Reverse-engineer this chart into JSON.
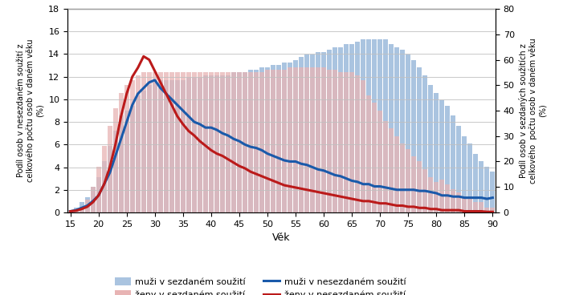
{
  "ages": [
    15,
    16,
    17,
    18,
    19,
    20,
    21,
    22,
    23,
    24,
    25,
    26,
    27,
    28,
    29,
    30,
    31,
    32,
    33,
    34,
    35,
    36,
    37,
    38,
    39,
    40,
    41,
    42,
    43,
    44,
    45,
    46,
    47,
    48,
    49,
    50,
    51,
    52,
    53,
    54,
    55,
    56,
    57,
    58,
    59,
    60,
    61,
    62,
    63,
    64,
    65,
    66,
    67,
    68,
    69,
    70,
    71,
    72,
    73,
    74,
    75,
    76,
    77,
    78,
    79,
    80,
    81,
    82,
    83,
    84,
    85,
    86,
    87,
    88,
    89,
    90
  ],
  "muzi_sezdani": [
    1,
    2,
    4,
    6,
    10,
    14,
    20,
    26,
    32,
    38,
    40,
    42,
    46,
    48,
    50,
    51,
    52,
    52,
    52,
    52,
    52,
    53,
    53,
    53,
    54,
    54,
    54,
    54,
    54,
    55,
    55,
    55,
    56,
    56,
    57,
    57,
    58,
    58,
    59,
    59,
    60,
    61,
    62,
    62,
    63,
    63,
    64,
    65,
    65,
    66,
    66,
    67,
    68,
    68,
    68,
    68,
    68,
    66,
    65,
    64,
    62,
    60,
    57,
    54,
    50,
    47,
    44,
    42,
    38,
    34,
    30,
    27,
    23,
    20,
    18,
    16
  ],
  "zeny_sezdani": [
    0.5,
    1,
    2,
    5,
    10,
    18,
    26,
    34,
    41,
    47,
    50,
    52,
    54,
    55,
    55,
    55,
    55,
    55,
    55,
    55,
    55,
    55,
    55,
    55,
    55,
    55,
    55,
    55,
    55,
    55,
    55,
    55,
    55,
    55,
    55,
    56,
    56,
    56,
    56,
    57,
    57,
    57,
    57,
    57,
    57,
    57,
    56,
    56,
    55,
    55,
    55,
    54,
    52,
    46,
    43,
    40,
    36,
    33,
    30,
    27,
    25,
    22,
    20,
    17,
    14,
    12,
    13,
    11,
    9,
    8,
    6,
    6,
    4,
    4,
    2,
    2
  ],
  "muzi_nesezdani": [
    0.1,
    0.2,
    0.4,
    0.6,
    1.0,
    1.5,
    2.5,
    3.5,
    5.0,
    6.5,
    8.0,
    9.5,
    10.5,
    11.0,
    11.5,
    11.7,
    11.0,
    10.5,
    10.0,
    9.5,
    9.0,
    8.5,
    8.0,
    7.8,
    7.5,
    7.5,
    7.3,
    7.0,
    6.8,
    6.5,
    6.3,
    6.0,
    5.8,
    5.7,
    5.5,
    5.2,
    5.0,
    4.8,
    4.6,
    4.5,
    4.5,
    4.3,
    4.2,
    4.0,
    3.8,
    3.7,
    3.5,
    3.3,
    3.2,
    3.0,
    2.8,
    2.7,
    2.5,
    2.5,
    2.3,
    2.3,
    2.2,
    2.1,
    2.0,
    2.0,
    2.0,
    2.0,
    1.9,
    1.9,
    1.8,
    1.7,
    1.5,
    1.5,
    1.4,
    1.4,
    1.3,
    1.3,
    1.3,
    1.3,
    1.2,
    1.3
  ],
  "zeny_nesezdani": [
    0.1,
    0.15,
    0.3,
    0.5,
    0.9,
    1.5,
    2.5,
    4.0,
    6.0,
    8.5,
    10.5,
    12.0,
    12.8,
    13.8,
    13.5,
    12.5,
    11.5,
    10.5,
    9.5,
    8.5,
    7.8,
    7.2,
    6.8,
    6.3,
    5.9,
    5.5,
    5.2,
    5.0,
    4.7,
    4.4,
    4.1,
    3.9,
    3.6,
    3.4,
    3.2,
    3.0,
    2.8,
    2.6,
    2.4,
    2.3,
    2.2,
    2.1,
    2.0,
    1.9,
    1.8,
    1.7,
    1.6,
    1.5,
    1.4,
    1.3,
    1.2,
    1.1,
    1.0,
    1.0,
    0.9,
    0.8,
    0.8,
    0.7,
    0.6,
    0.6,
    0.5,
    0.5,
    0.4,
    0.4,
    0.3,
    0.3,
    0.2,
    0.2,
    0.2,
    0.2,
    0.1,
    0.1,
    0.1,
    0.1,
    0.05,
    0.05
  ],
  "ylabel_left": "Podíl osob v nesezdaném soužití z\ncelkového počtu osob v daném věku\n(%)",
  "ylabel_right": "Podíl osob v sezdaných soužitích z\ncelkového  počtu osob v daném věku\n(%)",
  "xlabel": "Věk",
  "ylim_left": [
    0,
    18
  ],
  "ylim_right": [
    0,
    80
  ],
  "yticks_left": [
    0,
    2,
    4,
    6,
    8,
    10,
    12,
    14,
    16,
    18
  ],
  "yticks_right": [
    0,
    10,
    20,
    30,
    40,
    50,
    60,
    70,
    80
  ],
  "xticks": [
    15,
    20,
    25,
    30,
    35,
    40,
    45,
    50,
    55,
    60,
    65,
    70,
    75,
    80,
    85,
    90
  ],
  "color_muzi_sezdani": "#aac4e0",
  "color_zeny_sezdani": "#e8b4b4",
  "color_muzi_nesezdani": "#1a5aaa",
  "color_zeny_nesezdani": "#bb1a1a",
  "legend_labels": [
    "muži v sezdaném soužití",
    "ženy v sezdaném soužití",
    "muži v nesezdaném soužití",
    "ženy v nesezdaném soužití"
  ],
  "bar_width": 0.85,
  "background_color": "#ffffff"
}
